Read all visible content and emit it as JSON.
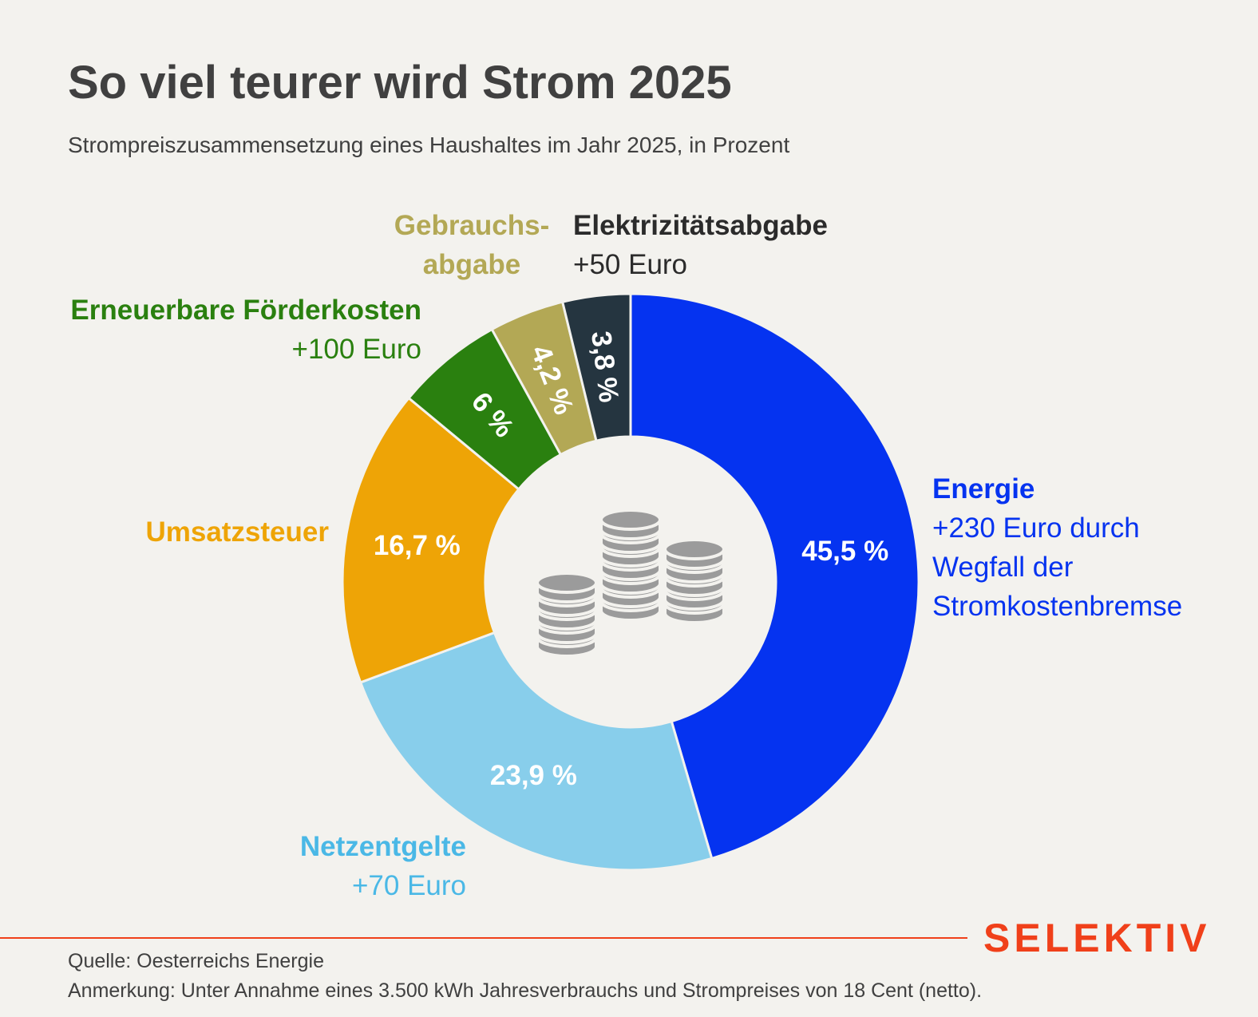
{
  "header": {
    "title": "So viel teurer wird Strom 2025",
    "subtitle": "Strompreiszusammensetzung eines Haushaltes im Jahr 2025, in Prozent"
  },
  "chart_data": {
    "type": "pie",
    "variant": "donut",
    "title": "So viel teurer wird Strom 2025",
    "subtitle": "Strompreiszusammensetzung eines Haushaltes im Jahr 2025, in Prozent",
    "slices": [
      {
        "name": "Energie",
        "value": 45.5,
        "label": "45,5 %",
        "note": [
          "+230 Euro durch",
          "Wegfall der",
          "Stromkostenbremse"
        ],
        "color": "#0533f0"
      },
      {
        "name": "Netzentgelte",
        "value": 23.9,
        "label": "23,9 %",
        "note": [
          "+70 Euro"
        ],
        "color": "#88ceeb"
      },
      {
        "name": "Umsatzsteuer",
        "value": 16.7,
        "label": "16,7 %",
        "note": [],
        "color": "#eea406"
      },
      {
        "name": "Erneuerbare Förderkosten",
        "value": 6,
        "label": "6 %",
        "note": [
          "+100 Euro"
        ],
        "color": "#2a800f"
      },
      {
        "name": "Gebrauchsabgabe",
        "value": 4.2,
        "label": "4,2 %",
        "note": [],
        "color": "#b3a855"
      },
      {
        "name": "Elektrizitätsabgabe",
        "value": 3.8,
        "label": "3,8 %",
        "note": [
          "+50 Euro"
        ],
        "color": "#253540"
      }
    ]
  },
  "labels": {
    "energie": {
      "name": "Energie",
      "l1": "+230 Euro durch",
      "l2": "Wegfall der",
      "l3": "Stromkostenbremse"
    },
    "netz": {
      "name": "Netzentgelte",
      "l1": "+70 Euro"
    },
    "umsatz": {
      "name": "Umsatzsteuer"
    },
    "erneuerbare": {
      "name": "Erneuerbare Förderkosten",
      "l1": "+100 Euro"
    },
    "gebrauch": {
      "l1": "Gebrauchs-",
      "l2": "abgabe"
    },
    "elektro": {
      "name": "Elektrizitätsabgabe",
      "l1": "+50 Euro"
    }
  },
  "footer": {
    "logo": "SELEKTIV",
    "source": "Quelle: Oesterreichs Energie",
    "note": "Anmerkung: Unter Annahme eines 3.500 kWh Jahresverbrauchs und Strompreises von 18 Cent (netto)."
  }
}
